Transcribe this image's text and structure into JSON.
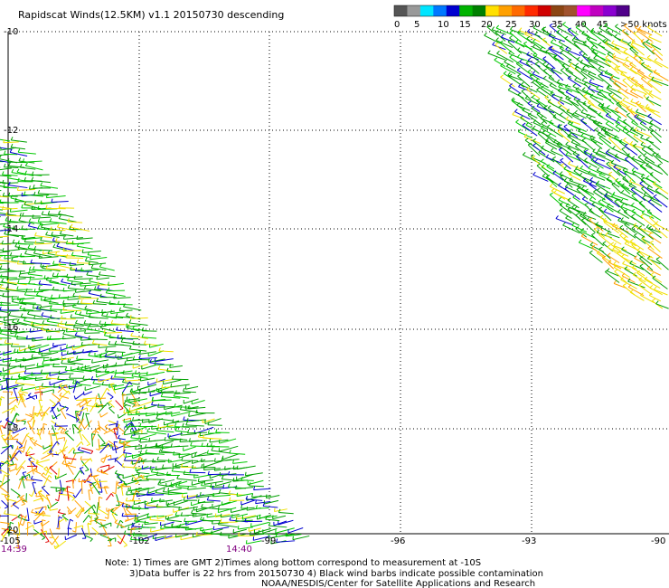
{
  "title": "Rapidscat Winds(12.5KM) v1.1 20150730 descending",
  "legend": {
    "labels": [
      "0",
      "5",
      "10",
      "15",
      "20",
      "25",
      "30",
      "35",
      "40",
      "45",
      ">50 knots"
    ],
    "colors": [
      "#555555",
      "#999999",
      "#00e5ff",
      "#0078ff",
      "#0000d0",
      "#00b400",
      "#008000",
      "#ffe000",
      "#ffa000",
      "#ff6a00",
      "#ff2a00",
      "#d00000",
      "#8b4513",
      "#a0522d",
      "#ff00ff",
      "#c000c0",
      "#8a00d0",
      "#50008a"
    ]
  },
  "axes": {
    "lat_labels": [
      "-10",
      "-12",
      "-14",
      "-16",
      "-18",
      "-20"
    ],
    "lon_labels": [
      "-105",
      "-102",
      "-99",
      "-96",
      "-93",
      "-90"
    ]
  },
  "times": [
    "14:39",
    "14:40"
  ],
  "notes": [
    "Note: 1) Times are GMT 2)Times along bottom correspond to measurement at -10S",
    "3)Data buffer is 22 hrs from 20150730 4) Black wind barbs indicate possible contamination",
    "NOAA/NESDIS/Center for Satellite Applications and Research"
  ],
  "swath_colors": {
    "green": "#00a000",
    "light_green": "#00c800",
    "yellow": "#f0e000",
    "orange": "#ffa000",
    "blue": "#0000d0",
    "red": "#e00000"
  }
}
